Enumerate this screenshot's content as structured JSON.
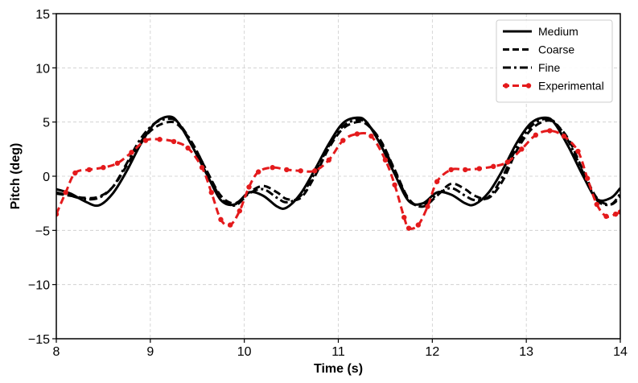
{
  "chart_data": {
    "type": "line",
    "title": "",
    "xlabel": "Time (s)",
    "ylabel": "Pitch (deg)",
    "xlim": [
      8,
      14
    ],
    "ylim": [
      -15,
      15
    ],
    "xticks": [
      8,
      9,
      10,
      11,
      12,
      13,
      14
    ],
    "yticks": [
      -15,
      -10,
      -5,
      0,
      5,
      10,
      15
    ],
    "xtick_labels": [
      "8",
      "9",
      "10",
      "11",
      "12",
      "13",
      "14"
    ],
    "ytick_labels": [
      "−15",
      "−10",
      "−5",
      "0",
      "5",
      "10",
      "15"
    ],
    "grid": true,
    "legend_position": "top-right",
    "series": [
      {
        "name": "Medium",
        "style": "solid",
        "color": "#000000",
        "x": [
          8.0,
          8.15,
          8.3,
          8.45,
          8.6,
          8.75,
          8.9,
          9.05,
          9.2,
          9.3,
          9.45,
          9.6,
          9.75,
          9.9,
          10.05,
          10.2,
          10.35,
          10.45,
          10.6,
          10.75,
          10.9,
          11.05,
          11.2,
          11.3,
          11.45,
          11.6,
          11.75,
          11.9,
          12.05,
          12.2,
          12.35,
          12.45,
          12.6,
          12.75,
          12.9,
          13.05,
          13.2,
          13.3,
          13.45,
          13.6,
          13.75,
          13.9,
          14.0
        ],
        "y": [
          -1.2,
          -1.6,
          -2.3,
          -2.7,
          -1.6,
          0.5,
          3.0,
          4.9,
          5.5,
          4.9,
          2.7,
          0.2,
          -2.2,
          -2.6,
          -1.5,
          -1.8,
          -2.8,
          -2.9,
          -1.6,
          0.6,
          3.0,
          4.9,
          5.4,
          5.0,
          2.9,
          0.2,
          -2.3,
          -2.5,
          -1.5,
          -1.7,
          -2.5,
          -2.6,
          -1.5,
          0.6,
          3.1,
          4.9,
          5.4,
          4.9,
          2.7,
          0.1,
          -2.1,
          -2.0,
          -1.1
        ]
      },
      {
        "name": "Coarse",
        "style": "dashed",
        "color": "#000000",
        "x": [
          8.0,
          8.15,
          8.3,
          8.45,
          8.6,
          8.75,
          8.9,
          9.05,
          9.2,
          9.3,
          9.45,
          9.6,
          9.75,
          9.9,
          10.05,
          10.2,
          10.35,
          10.45,
          10.6,
          10.75,
          10.9,
          11.05,
          11.2,
          11.3,
          11.45,
          11.6,
          11.75,
          11.9,
          12.05,
          12.2,
          12.35,
          12.45,
          12.6,
          12.75,
          12.9,
          13.05,
          13.2,
          13.3,
          13.45,
          13.6,
          13.75,
          13.9,
          14.0
        ],
        "y": [
          -1.6,
          -1.8,
          -2.0,
          -1.9,
          -1.0,
          1.0,
          3.2,
          4.5,
          5.0,
          4.7,
          3.0,
          0.5,
          -1.8,
          -2.5,
          -1.5,
          -0.9,
          -1.5,
          -2.1,
          -2.0,
          0.0,
          2.6,
          4.4,
          5.0,
          4.8,
          3.3,
          0.6,
          -2.1,
          -2.8,
          -1.8,
          -0.7,
          -1.2,
          -1.8,
          -2.0,
          -0.4,
          2.4,
          4.3,
          5.1,
          4.9,
          3.4,
          0.6,
          -2.0,
          -2.6,
          -1.9
        ]
      },
      {
        "name": "Fine",
        "style": "dashdot",
        "color": "#000000",
        "x": [
          8.0,
          8.15,
          8.3,
          8.45,
          8.6,
          8.75,
          8.9,
          9.05,
          9.2,
          9.3,
          9.45,
          9.6,
          9.75,
          9.9,
          10.05,
          10.2,
          10.35,
          10.45,
          10.6,
          10.75,
          10.9,
          11.05,
          11.2,
          11.3,
          11.45,
          11.6,
          11.75,
          11.9,
          12.05,
          12.2,
          12.35,
          12.45,
          12.6,
          12.75,
          12.9,
          13.05,
          13.2,
          13.3,
          13.45,
          13.6,
          13.75,
          13.9,
          14.0
        ],
        "y": [
          -1.5,
          -1.8,
          -2.1,
          -2.0,
          -1.0,
          1.2,
          3.5,
          4.9,
          5.3,
          4.9,
          3.0,
          0.5,
          -2.0,
          -2.7,
          -1.6,
          -1.2,
          -2.0,
          -2.4,
          -1.8,
          0.3,
          2.8,
          4.6,
          5.2,
          4.9,
          3.2,
          0.5,
          -2.2,
          -2.7,
          -1.7,
          -1.1,
          -1.8,
          -2.2,
          -1.9,
          0.0,
          2.7,
          4.6,
          5.3,
          5.0,
          3.2,
          0.4,
          -2.2,
          -2.6,
          -1.6
        ]
      },
      {
        "name": "Experimental",
        "style": "dashed-markers",
        "color": "#e41a1c",
        "x": [
          8.0,
          8.1,
          8.2,
          8.35,
          8.5,
          8.65,
          8.8,
          8.95,
          9.1,
          9.25,
          9.4,
          9.55,
          9.65,
          9.75,
          9.85,
          9.95,
          10.05,
          10.15,
          10.3,
          10.45,
          10.6,
          10.75,
          10.9,
          11.05,
          11.2,
          11.35,
          11.5,
          11.6,
          11.7,
          11.75,
          11.85,
          11.95,
          12.05,
          12.2,
          12.35,
          12.5,
          12.65,
          12.8,
          12.95,
          13.1,
          13.25,
          13.4,
          13.55,
          13.65,
          13.75,
          13.85,
          13.95,
          14.0
        ],
        "y": [
          -3.5,
          -1.5,
          0.3,
          0.6,
          0.8,
          1.2,
          2.2,
          3.3,
          3.4,
          3.2,
          2.6,
          0.8,
          -1.5,
          -4.0,
          -4.5,
          -3.2,
          -1.0,
          0.4,
          0.8,
          0.6,
          0.5,
          0.5,
          1.5,
          3.3,
          3.9,
          3.7,
          1.5,
          -0.8,
          -3.8,
          -4.8,
          -4.5,
          -2.8,
          -0.5,
          0.6,
          0.6,
          0.7,
          0.9,
          1.3,
          2.5,
          3.8,
          4.2,
          3.7,
          2.3,
          -0.2,
          -2.6,
          -3.7,
          -3.5,
          -3.3
        ]
      }
    ]
  }
}
